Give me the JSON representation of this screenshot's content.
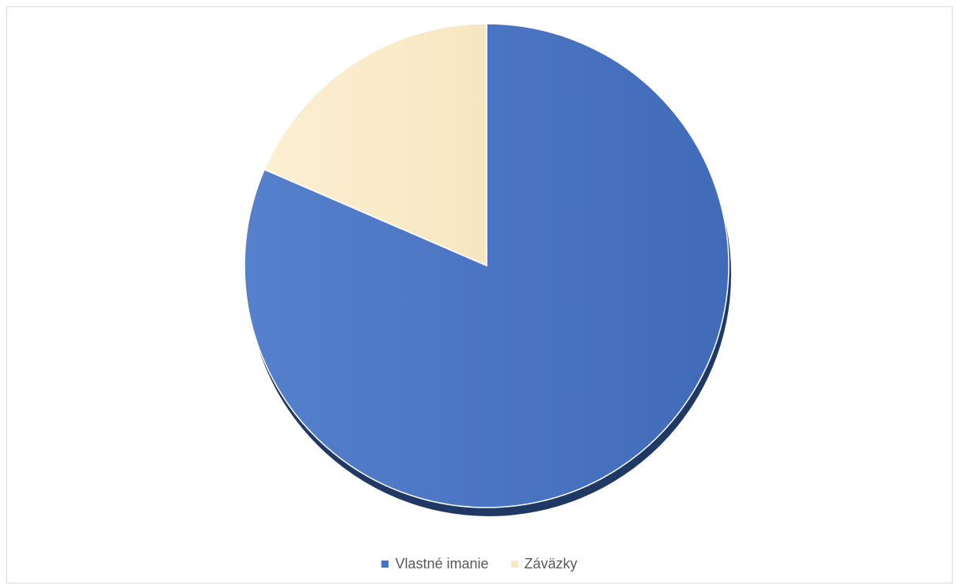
{
  "chart_data": {
    "type": "pie",
    "categories": [
      "Vlastné imanie",
      "Záväzky"
    ],
    "values": [
      81.5,
      18.5
    ],
    "colors": [
      "#4472C4",
      "#F8E9C6"
    ],
    "legend_position": "bottom",
    "title": ""
  }
}
